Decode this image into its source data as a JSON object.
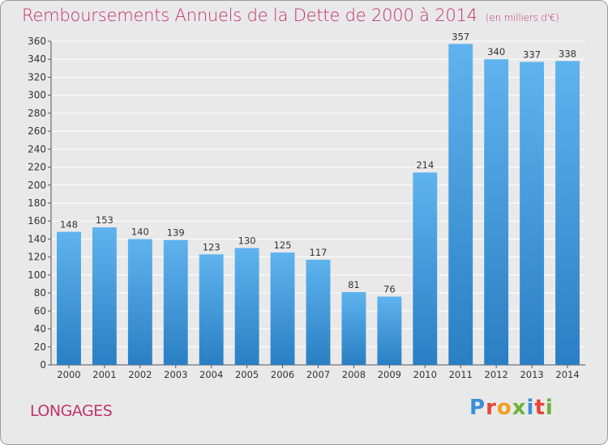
{
  "header": {
    "title": "Remboursements Annuels de la Dette de 2000 à 2014",
    "subtitle": "(en milliers d'€)"
  },
  "footer": {
    "commune": "LONGAGES",
    "logo_text": "Proxiti"
  },
  "colors": {
    "title": "#c0326f",
    "bar_top": "#5fb3ee",
    "bar_bottom": "#2a7fc4",
    "grid": "#ffffff",
    "background": "#e9e9e9"
  },
  "chart_data": {
    "type": "bar",
    "title": "Remboursements Annuels de la Dette de 2000 à 2014",
    "subtitle": "(en milliers d'€)",
    "xlabel": "",
    "ylabel": "",
    "categories": [
      "2000",
      "2001",
      "2002",
      "2003",
      "2004",
      "2005",
      "2006",
      "2007",
      "2008",
      "2009",
      "2010",
      "2011",
      "2012",
      "2013",
      "2014"
    ],
    "values": [
      148,
      153,
      140,
      139,
      123,
      130,
      125,
      117,
      81,
      76,
      214,
      357,
      340,
      337,
      338
    ],
    "ylim": [
      0,
      360
    ],
    "yticks": [
      0,
      20,
      40,
      60,
      80,
      100,
      120,
      140,
      160,
      180,
      200,
      220,
      240,
      260,
      280,
      300,
      320,
      340,
      360
    ],
    "grid": true,
    "legend": "none"
  }
}
